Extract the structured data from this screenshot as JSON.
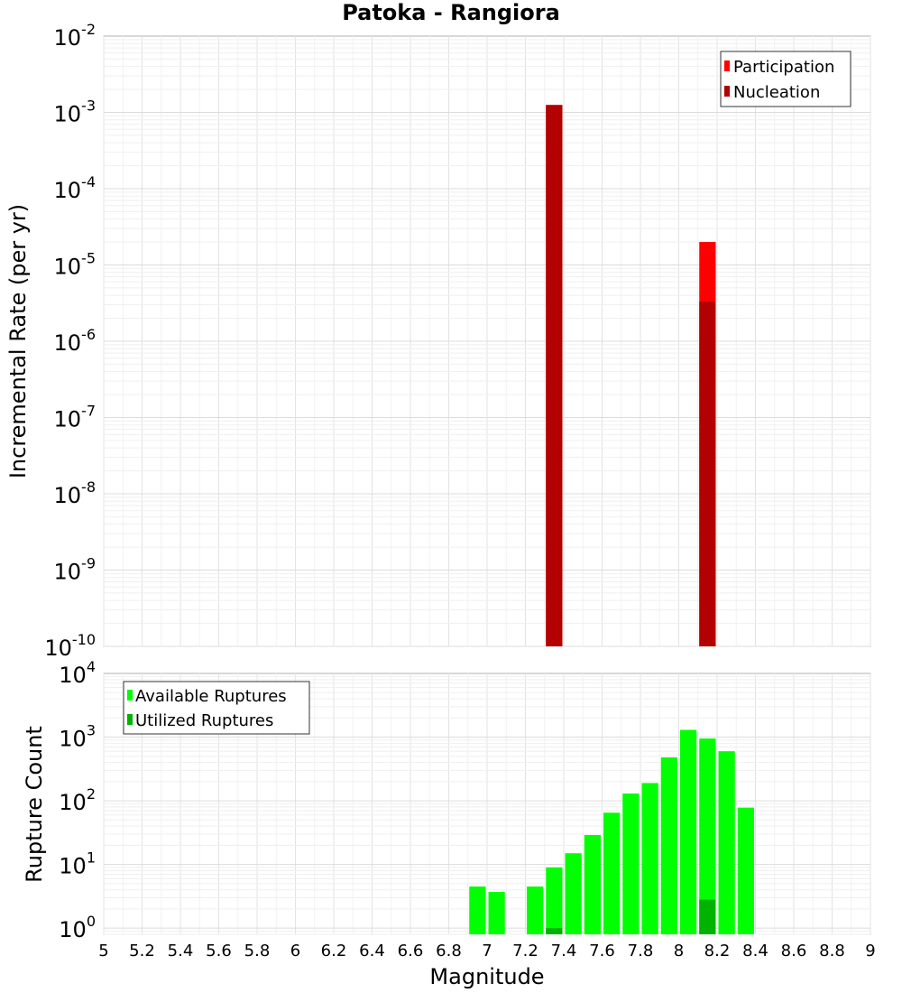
{
  "chart_data": [
    {
      "type": "bar",
      "title": "Patoka - Rangiora",
      "xlabel": "Magnitude",
      "ylabel": "Incremental Rate (per yr)",
      "yscale": "log",
      "ylim_exponents": [
        -10,
        -2
      ],
      "xlim": [
        5,
        9
      ],
      "grid": true,
      "legend_position": "top-right",
      "bin_width": 0.1,
      "series": [
        {
          "name": "Participation",
          "color": "#ff0000",
          "x": [
            7.35,
            8.15
          ],
          "values": [
            0.00125,
            2e-05
          ]
        },
        {
          "name": "Nucleation",
          "color": "#b30000",
          "x": [
            7.35,
            8.15
          ],
          "values": [
            0.00125,
            3.3e-06
          ]
        }
      ],
      "ytick_labels": [
        {
          "base": "10",
          "exp": "-10"
        },
        {
          "base": "10",
          "exp": "-9"
        },
        {
          "base": "10",
          "exp": "-8"
        },
        {
          "base": "10",
          "exp": "-7"
        },
        {
          "base": "10",
          "exp": "-6"
        },
        {
          "base": "10",
          "exp": "-5"
        },
        {
          "base": "10",
          "exp": "-4"
        },
        {
          "base": "10",
          "exp": "-3"
        },
        {
          "base": "10",
          "exp": "-2"
        }
      ]
    },
    {
      "type": "bar",
      "title": "",
      "xlabel": "Magnitude",
      "ylabel": "Rupture Count",
      "yscale": "log",
      "ylim": [
        0.8,
        10000
      ],
      "xlim": [
        5,
        9
      ],
      "grid": true,
      "legend_position": "top-left",
      "bin_width": 0.1,
      "series": [
        {
          "name": "Available Ruptures",
          "color": "#00ff00",
          "x": [
            6.95,
            7.05,
            7.25,
            7.35,
            7.45,
            7.55,
            7.65,
            7.75,
            7.85,
            7.95,
            8.05,
            8.15,
            8.25,
            8.35
          ],
          "values": [
            4.5,
            3.7,
            4.5,
            9,
            15,
            29,
            65,
            130,
            190,
            480,
            1300,
            950,
            600,
            78
          ]
        },
        {
          "name": "Utilized Ruptures",
          "color": "#00b300",
          "x": [
            7.35,
            8.15
          ],
          "values": [
            1,
            2.8
          ]
        }
      ],
      "ytick_labels": [
        {
          "base": "10",
          "exp": "0"
        },
        {
          "base": "10",
          "exp": "1"
        },
        {
          "base": "10",
          "exp": "2"
        },
        {
          "base": "10",
          "exp": "3"
        },
        {
          "base": "10",
          "exp": "4"
        }
      ]
    }
  ],
  "x_tick_labels": [
    "5",
    "5.2",
    "5.4",
    "5.6",
    "5.8",
    "6",
    "6.2",
    "6.4",
    "6.6",
    "6.8",
    "7",
    "7.2",
    "7.4",
    "7.6",
    "7.8",
    "8",
    "8.2",
    "8.4",
    "8.6",
    "8.8",
    "9"
  ]
}
